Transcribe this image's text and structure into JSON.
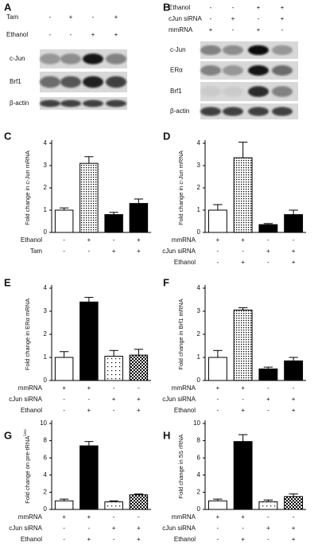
{
  "blots": [
    {
      "panel": "A",
      "conditions": [
        {
          "label": "Tam",
          "signs": [
            "-",
            "+",
            "-",
            "+"
          ]
        },
        {
          "label": "Ethanol",
          "signs": [
            "-",
            "-",
            "+",
            "+"
          ]
        }
      ],
      "bands": [
        "c-Jun",
        "Brf1",
        "β-actin"
      ]
    },
    {
      "panel": "B",
      "conditions": [
        {
          "label": "Ethanol",
          "signs": [
            "-",
            "-",
            "+",
            "+"
          ]
        },
        {
          "label": "cJun siRNA",
          "signs": [
            "-",
            "+",
            "-",
            "+"
          ]
        },
        {
          "label": "mmRNA",
          "signs": [
            "+",
            "-",
            "+",
            "-"
          ]
        }
      ],
      "bands": [
        "c-Jun",
        "ERα",
        "Brf1",
        "β-actin"
      ]
    }
  ],
  "chart_data": [
    {
      "type": "bar",
      "panel": "C",
      "ylabel": "Fold change in c-Jun mRNA",
      "ylim": [
        0,
        4
      ],
      "yticks": [
        0,
        1,
        2,
        3,
        4
      ],
      "values": [
        1.0,
        3.1,
        0.8,
        1.3
      ],
      "errors": [
        0.1,
        0.3,
        0.1,
        0.2
      ],
      "fills": [
        "white",
        "dots",
        "black",
        "black"
      ],
      "conditions": [
        {
          "label": "Ethanol",
          "signs": [
            "-",
            "+",
            "-",
            "+"
          ]
        },
        {
          "label": "Tam",
          "signs": [
            "-",
            "-",
            "+",
            "+"
          ]
        }
      ]
    },
    {
      "type": "bar",
      "panel": "D",
      "ylabel": "Fold change in c-Jun mRNA",
      "ylim": [
        0,
        4
      ],
      "yticks": [
        0,
        1,
        2,
        3,
        4
      ],
      "values": [
        1.0,
        3.35,
        0.35,
        0.8
      ],
      "errors": [
        0.25,
        0.7,
        0.05,
        0.2
      ],
      "fills": [
        "white",
        "dots",
        "black",
        "black"
      ],
      "conditions": [
        {
          "label": "mmRNA",
          "signs": [
            "+",
            "+",
            "-",
            "-"
          ]
        },
        {
          "label": "cJun siRNA",
          "signs": [
            "-",
            "-",
            "+",
            "+"
          ]
        },
        {
          "label": "Ethanol",
          "signs": [
            "-",
            "+",
            "-",
            "+"
          ]
        }
      ]
    },
    {
      "type": "bar",
      "panel": "E",
      "ylabel": "Fold change in ERα mRNA",
      "ylim": [
        0,
        4
      ],
      "yticks": [
        0,
        1,
        2,
        3,
        4
      ],
      "values": [
        1.0,
        3.4,
        1.05,
        1.1
      ],
      "errors": [
        0.25,
        0.2,
        0.25,
        0.25
      ],
      "fills": [
        "white",
        "black",
        "sparse-dots",
        "checker"
      ],
      "conditions": [
        {
          "label": "mmRNA",
          "signs": [
            "+",
            "+",
            "-",
            "-"
          ]
        },
        {
          "label": "cJun siRNA",
          "signs": [
            "-",
            "-",
            "+",
            "+"
          ]
        },
        {
          "label": "Ethanol",
          "signs": [
            "-",
            "+",
            "-",
            "+"
          ]
        }
      ]
    },
    {
      "type": "bar",
      "panel": "F",
      "ylabel": "Fold change in Brf1 mRNA",
      "ylim": [
        0,
        4
      ],
      "yticks": [
        0,
        1,
        2,
        3,
        4
      ],
      "values": [
        1.0,
        3.05,
        0.5,
        0.85
      ],
      "errors": [
        0.3,
        0.1,
        0.08,
        0.15
      ],
      "fills": [
        "white",
        "dots",
        "black",
        "black"
      ],
      "conditions": [
        {
          "label": "mmRNA",
          "signs": [
            "+",
            "+",
            "-",
            "-"
          ]
        },
        {
          "label": "cJun siRNA",
          "signs": [
            "-",
            "-",
            "+",
            "+"
          ]
        },
        {
          "label": "Ethanol",
          "signs": [
            "-",
            "+",
            "-",
            "+"
          ]
        }
      ]
    },
    {
      "type": "bar",
      "panel": "G",
      "ylabel": "Fold change on pre-tRNA",
      "ylabel_sup": "Leu",
      "ylim": [
        0,
        10
      ],
      "yticks": [
        0,
        2,
        4,
        6,
        8,
        10
      ],
      "values": [
        1.0,
        7.4,
        0.9,
        1.7
      ],
      "errors": [
        0.2,
        0.5,
        0.1,
        0.1
      ],
      "fills": [
        "white",
        "black",
        "sparse-dots",
        "checker"
      ],
      "conditions": [
        {
          "label": "mmRNA",
          "signs": [
            "+",
            "+",
            "-",
            "-"
          ]
        },
        {
          "label": "cJun siRNA",
          "signs": [
            "-",
            "-",
            "+",
            "+"
          ]
        },
        {
          "label": "Ethanol",
          "signs": [
            "-",
            "+",
            "-",
            "+"
          ]
        }
      ]
    },
    {
      "type": "bar",
      "panel": "H",
      "ylabel": "Fold change in 5S rRNA",
      "ylim": [
        0,
        10
      ],
      "yticks": [
        0,
        2,
        4,
        6,
        8,
        10
      ],
      "values": [
        1.0,
        7.9,
        0.9,
        1.5
      ],
      "errors": [
        0.2,
        0.8,
        0.2,
        0.3
      ],
      "fills": [
        "white",
        "black",
        "sparse-dots",
        "checker"
      ],
      "conditions": [
        {
          "label": "mmRNA",
          "signs": [
            "+",
            "+",
            "-",
            "-"
          ]
        },
        {
          "label": "cJun siRNA",
          "signs": [
            "-",
            "-",
            "+",
            "+"
          ]
        },
        {
          "label": "Ethanol",
          "signs": [
            "-",
            "+",
            "-",
            "+"
          ]
        }
      ]
    }
  ]
}
